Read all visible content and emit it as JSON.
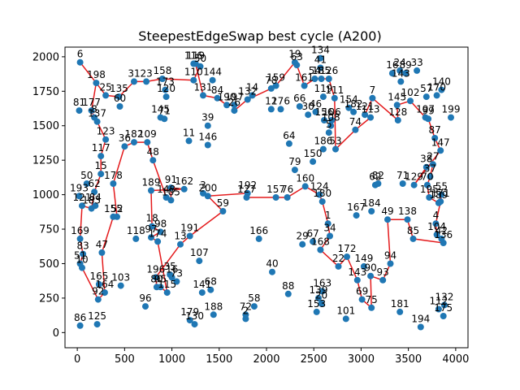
{
  "chart_data": {
    "type": "scatter",
    "title": "SteepestEdgeSwap best cycle (A200)",
    "xlabel": "",
    "ylabel": "",
    "xlim": [
      -130,
      4130
    ],
    "ylim": [
      -110,
      2070
    ],
    "xticks": [
      0,
      500,
      1000,
      1500,
      2000,
      2500,
      3000,
      3500,
      4000
    ],
    "yticks": [
      0,
      250,
      500,
      750,
      1000,
      1250,
      1500,
      1750,
      2000
    ],
    "grid": false,
    "point_color": "#1f77b4",
    "cycle_color": "#e41a1c",
    "points": [
      {
        "id": "6",
        "x": 30,
        "y": 1960
      },
      {
        "id": "198",
        "x": 200,
        "y": 1810
      },
      {
        "id": "81",
        "x": 20,
        "y": 1610
      },
      {
        "id": "177",
        "x": 150,
        "y": 1610
      },
      {
        "id": "8",
        "x": 180,
        "y": 1560
      },
      {
        "id": "137",
        "x": 210,
        "y": 1530
      },
      {
        "id": "25",
        "x": 300,
        "y": 1720
      },
      {
        "id": "135",
        "x": 440,
        "y": 1710
      },
      {
        "id": "60",
        "x": 450,
        "y": 1640
      },
      {
        "id": "31",
        "x": 600,
        "y": 1820
      },
      {
        "id": "23",
        "x": 730,
        "y": 1820
      },
      {
        "id": "158",
        "x": 900,
        "y": 1840
      },
      {
        "id": "173",
        "x": 930,
        "y": 1760
      },
      {
        "id": "120",
        "x": 940,
        "y": 1710
      },
      {
        "id": "145",
        "x": 880,
        "y": 1560
      },
      {
        "id": "71",
        "x": 920,
        "y": 1550
      },
      {
        "id": "116",
        "x": 1230,
        "y": 1950
      },
      {
        "id": "119",
        "x": 1250,
        "y": 1950
      },
      {
        "id": "50",
        "x": 1300,
        "y": 1930
      },
      {
        "id": "110",
        "x": 1230,
        "y": 1830
      },
      {
        "id": "144",
        "x": 1430,
        "y": 1830
      },
      {
        "id": "131",
        "x": 1330,
        "y": 1720
      },
      {
        "id": "84",
        "x": 1480,
        "y": 1700
      },
      {
        "id": "190",
        "x": 1580,
        "y": 1650
      },
      {
        "id": "197",
        "x": 1660,
        "y": 1650
      },
      {
        "id": "26",
        "x": 1660,
        "y": 1610
      },
      {
        "id": "132",
        "x": 1800,
        "y": 1690
      },
      {
        "id": "14",
        "x": 1850,
        "y": 1720
      },
      {
        "id": "39",
        "x": 1380,
        "y": 1500
      },
      {
        "id": "146",
        "x": 1380,
        "y": 1360
      },
      {
        "id": "11",
        "x": 1180,
        "y": 1390
      },
      {
        "id": "159",
        "x": 2100,
        "y": 1790
      },
      {
        "id": "78",
        "x": 2050,
        "y": 1770
      },
      {
        "id": "19",
        "x": 2300,
        "y": 1960
      },
      {
        "id": "63",
        "x": 2320,
        "y": 1940
      },
      {
        "id": "161",
        "x": 2400,
        "y": 1790
      },
      {
        "id": "134",
        "x": 2570,
        "y": 1990
      },
      {
        "id": "41",
        "x": 2570,
        "y": 1920
      },
      {
        "id": "54",
        "x": 2510,
        "y": 1840
      },
      {
        "id": "185",
        "x": 2580,
        "y": 1840
      },
      {
        "id": "126",
        "x": 2660,
        "y": 1840
      },
      {
        "id": "12",
        "x": 2050,
        "y": 1620
      },
      {
        "id": "176",
        "x": 2150,
        "y": 1620
      },
      {
        "id": "66",
        "x": 2350,
        "y": 1640
      },
      {
        "id": "119b",
        "x": 2600,
        "y": 1710
      },
      {
        "id": "111",
        "x": 2720,
        "y": 1700
      },
      {
        "id": "46",
        "x": 2520,
        "y": 1600
      },
      {
        "id": "30",
        "x": 2440,
        "y": 1580
      },
      {
        "id": "156",
        "x": 2610,
        "y": 1540
      },
      {
        "id": "106",
        "x": 2690,
        "y": 1540
      },
      {
        "id": "108",
        "x": 2680,
        "y": 1500
      },
      {
        "id": "5",
        "x": 2660,
        "y": 1450
      },
      {
        "id": "64",
        "x": 2240,
        "y": 1370
      },
      {
        "id": "186",
        "x": 2600,
        "y": 1330
      },
      {
        "id": "53",
        "x": 2730,
        "y": 1330
      },
      {
        "id": "150",
        "x": 2490,
        "y": 1240
      },
      {
        "id": "79",
        "x": 2300,
        "y": 1180
      },
      {
        "id": "154",
        "x": 2870,
        "y": 1630
      },
      {
        "id": "182",
        "x": 2920,
        "y": 1600
      },
      {
        "id": "7",
        "x": 3120,
        "y": 1700
      },
      {
        "id": "121",
        "x": 3040,
        "y": 1580
      },
      {
        "id": "113",
        "x": 3100,
        "y": 1560
      },
      {
        "id": "74",
        "x": 2940,
        "y": 1470
      },
      {
        "id": "16",
        "x": 3330,
        "y": 1880
      },
      {
        "id": "24",
        "x": 3410,
        "y": 1900
      },
      {
        "id": "89",
        "x": 3470,
        "y": 1880
      },
      {
        "id": "33",
        "x": 3590,
        "y": 1900
      },
      {
        "id": "143",
        "x": 3420,
        "y": 1820
      },
      {
        "id": "145b",
        "x": 3380,
        "y": 1650
      },
      {
        "id": "102",
        "x": 3520,
        "y": 1680
      },
      {
        "id": "57",
        "x": 3690,
        "y": 1710
      },
      {
        "id": "170",
        "x": 3800,
        "y": 1720
      },
      {
        "id": "140",
        "x": 3850,
        "y": 1760
      },
      {
        "id": "128",
        "x": 3390,
        "y": 1540
      },
      {
        "id": "197b",
        "x": 3680,
        "y": 1560
      },
      {
        "id": "99",
        "x": 3710,
        "y": 1550
      },
      {
        "id": "199",
        "x": 3950,
        "y": 1560
      },
      {
        "id": "87",
        "x": 3780,
        "y": 1410
      },
      {
        "id": "147",
        "x": 3840,
        "y": 1320
      },
      {
        "id": "38",
        "x": 3690,
        "y": 1200
      },
      {
        "id": "27",
        "x": 3760,
        "y": 1220
      },
      {
        "id": "37",
        "x": 3730,
        "y": 1130
      },
      {
        "id": "70",
        "x": 3700,
        "y": 1070
      },
      {
        "id": "129",
        "x": 3560,
        "y": 1070
      },
      {
        "id": "71b",
        "x": 3440,
        "y": 1080
      },
      {
        "id": "62",
        "x": 3150,
        "y": 1070
      },
      {
        "id": "82",
        "x": 3180,
        "y": 1080
      },
      {
        "id": "195",
        "x": 3720,
        "y": 980
      },
      {
        "id": "55",
        "x": 3850,
        "y": 1000
      },
      {
        "id": "171",
        "x": 3840,
        "y": 950
      },
      {
        "id": "189b",
        "x": 3820,
        "y": 940
      },
      {
        "id": "184",
        "x": 3110,
        "y": 880
      },
      {
        "id": "167",
        "x": 2950,
        "y": 850
      },
      {
        "id": "49",
        "x": 3280,
        "y": 820
      },
      {
        "id": "138",
        "x": 3490,
        "y": 820
      },
      {
        "id": "4",
        "x": 3790,
        "y": 790
      },
      {
        "id": "104",
        "x": 3800,
        "y": 710
      },
      {
        "id": "42",
        "x": 3850,
        "y": 680
      },
      {
        "id": "136",
        "x": 3870,
        "y": 650
      },
      {
        "id": "85",
        "x": 3550,
        "y": 680
      },
      {
        "id": "160",
        "x": 2410,
        "y": 1060
      },
      {
        "id": "124",
        "x": 2560,
        "y": 1000
      },
      {
        "id": "180",
        "x": 2590,
        "y": 950
      },
      {
        "id": "157",
        "x": 2100,
        "y": 980
      },
      {
        "id": "76",
        "x": 2220,
        "y": 980
      },
      {
        "id": "1",
        "x": 2650,
        "y": 790
      },
      {
        "id": "34",
        "x": 2670,
        "y": 700
      },
      {
        "id": "29",
        "x": 2380,
        "y": 640
      },
      {
        "id": "67",
        "x": 2490,
        "y": 660
      },
      {
        "id": "168",
        "x": 2570,
        "y": 600
      },
      {
        "id": "172",
        "x": 2850,
        "y": 550
      },
      {
        "id": "22",
        "x": 2760,
        "y": 480
      },
      {
        "id": "149",
        "x": 3030,
        "y": 480
      },
      {
        "id": "94",
        "x": 3310,
        "y": 500
      },
      {
        "id": "90",
        "x": 3100,
        "y": 410
      },
      {
        "id": "93",
        "x": 3230,
        "y": 380
      },
      {
        "id": "143b",
        "x": 2960,
        "y": 380
      },
      {
        "id": "69",
        "x": 3010,
        "y": 240
      },
      {
        "id": "75",
        "x": 3110,
        "y": 180
      },
      {
        "id": "101",
        "x": 2840,
        "y": 100
      },
      {
        "id": "163",
        "x": 2590,
        "y": 300
      },
      {
        "id": "139",
        "x": 2550,
        "y": 250
      },
      {
        "id": "20",
        "x": 2580,
        "y": 210
      },
      {
        "id": "153",
        "x": 2530,
        "y": 150
      },
      {
        "id": "181",
        "x": 3410,
        "y": 150
      },
      {
        "id": "194",
        "x": 3630,
        "y": 40
      },
      {
        "id": "112",
        "x": 3820,
        "y": 170
      },
      {
        "id": "132b",
        "x": 3880,
        "y": 200
      },
      {
        "id": "175",
        "x": 3870,
        "y": 120
      },
      {
        "id": "127",
        "x": 1790,
        "y": 980
      },
      {
        "id": "192",
        "x": 1800,
        "y": 1010
      },
      {
        "id": "166",
        "x": 1920,
        "y": 680
      },
      {
        "id": "40",
        "x": 2060,
        "y": 440
      },
      {
        "id": "88",
        "x": 2230,
        "y": 280
      },
      {
        "id": "58",
        "x": 1870,
        "y": 190
      },
      {
        "id": "72",
        "x": 1780,
        "y": 130
      },
      {
        "id": "2",
        "x": 1780,
        "y": 100
      },
      {
        "id": "59",
        "x": 1540,
        "y": 880
      },
      {
        "id": "200",
        "x": 1380,
        "y": 990
      },
      {
        "id": "3",
        "x": 1330,
        "y": 1010
      },
      {
        "id": "191",
        "x": 1190,
        "y": 700
      },
      {
        "id": "13",
        "x": 1090,
        "y": 640
      },
      {
        "id": "107",
        "x": 1290,
        "y": 520
      },
      {
        "id": "68",
        "x": 1410,
        "y": 310
      },
      {
        "id": "141",
        "x": 1320,
        "y": 290
      },
      {
        "id": "179",
        "x": 1190,
        "y": 90
      },
      {
        "id": "130",
        "x": 1240,
        "y": 60
      },
      {
        "id": "188",
        "x": 1440,
        "y": 130
      },
      {
        "id": "91",
        "x": 990,
        "y": 1050
      },
      {
        "id": "162",
        "x": 1130,
        "y": 1040
      },
      {
        "id": "148",
        "x": 940,
        "y": 980
      },
      {
        "id": "105",
        "x": 990,
        "y": 960
      },
      {
        "id": "189",
        "x": 780,
        "y": 1030
      },
      {
        "id": "18",
        "x": 790,
        "y": 770
      },
      {
        "id": "98",
        "x": 880,
        "y": 730
      },
      {
        "id": "97",
        "x": 780,
        "y": 690
      },
      {
        "id": "174",
        "x": 850,
        "y": 660
      },
      {
        "id": "118",
        "x": 620,
        "y": 680
      },
      {
        "id": "35",
        "x": 980,
        "y": 420
      },
      {
        "id": "16b",
        "x": 1000,
        "y": 400
      },
      {
        "id": "73",
        "x": 1050,
        "y": 370
      },
      {
        "id": "196",
        "x": 830,
        "y": 400
      },
      {
        "id": "80",
        "x": 840,
        "y": 330
      },
      {
        "id": "95",
        "x": 880,
        "y": 330
      },
      {
        "id": "115",
        "x": 950,
        "y": 290
      },
      {
        "id": "96",
        "x": 720,
        "y": 190
      },
      {
        "id": "182b",
        "x": 600,
        "y": 1380
      },
      {
        "id": "109",
        "x": 740,
        "y": 1380
      },
      {
        "id": "48",
        "x": 800,
        "y": 1250
      },
      {
        "id": "36",
        "x": 500,
        "y": 1350
      },
      {
        "id": "123",
        "x": 300,
        "y": 1400
      },
      {
        "id": "117",
        "x": 250,
        "y": 1280
      },
      {
        "id": "15",
        "x": 250,
        "y": 1150
      },
      {
        "id": "178",
        "x": 380,
        "y": 1080
      },
      {
        "id": "50b",
        "x": 100,
        "y": 1080
      },
      {
        "id": "62b",
        "x": 180,
        "y": 1020
      },
      {
        "id": "193",
        "x": 20,
        "y": 990
      },
      {
        "id": "121b",
        "x": 50,
        "y": 920
      },
      {
        "id": "183",
        "x": 150,
        "y": 900
      },
      {
        "id": "84b",
        "x": 190,
        "y": 920
      },
      {
        "id": "155",
        "x": 380,
        "y": 840
      },
      {
        "id": "52",
        "x": 420,
        "y": 840
      },
      {
        "id": "169",
        "x": 30,
        "y": 680
      },
      {
        "id": "47",
        "x": 260,
        "y": 580
      },
      {
        "id": "83",
        "x": 60,
        "y": 570
      },
      {
        "id": "51",
        "x": 30,
        "y": 500
      },
      {
        "id": "10",
        "x": 50,
        "y": 470
      },
      {
        "id": "165",
        "x": 230,
        "y": 350
      },
      {
        "id": "103",
        "x": 460,
        "y": 340
      },
      {
        "id": "164",
        "x": 290,
        "y": 290
      },
      {
        "id": "92",
        "x": 220,
        "y": 240
      },
      {
        "id": "86",
        "x": 30,
        "y": 50
      },
      {
        "id": "125",
        "x": 210,
        "y": 60
      }
    ],
    "cycle": [
      "6",
      "198",
      "177",
      "8",
      "137",
      "123",
      "117",
      "15",
      "62b",
      "183",
      "121b",
      "169",
      "83",
      "51",
      "10",
      "92",
      "164",
      "47",
      "155",
      "52",
      "178",
      "36",
      "182b",
      "109",
      "48",
      "148",
      "105",
      "91",
      "162",
      "189",
      "18",
      "98",
      "97",
      "174",
      "115",
      "95",
      "80",
      "196",
      "13",
      "191",
      "59",
      "200",
      "192",
      "127",
      "157",
      "76",
      "160",
      "124",
      "180",
      "1",
      "34",
      "168",
      "22",
      "172",
      "143b",
      "69",
      "75",
      "90",
      "93",
      "94",
      "49",
      "138",
      "85",
      "136",
      "42",
      "104",
      "4",
      "171",
      "55",
      "189b",
      "195",
      "70",
      "37",
      "27",
      "38",
      "129",
      "147",
      "87",
      "99",
      "197b",
      "102",
      "145b",
      "128",
      "7",
      "121",
      "113",
      "74",
      "53",
      "111",
      "126",
      "185",
      "54",
      "161",
      "63",
      "19",
      "159",
      "78",
      "132",
      "14",
      "26",
      "197",
      "190",
      "84",
      "131",
      "119",
      "116",
      "50",
      "110",
      "158",
      "23",
      "31",
      "135",
      "25",
      "198"
    ]
  }
}
